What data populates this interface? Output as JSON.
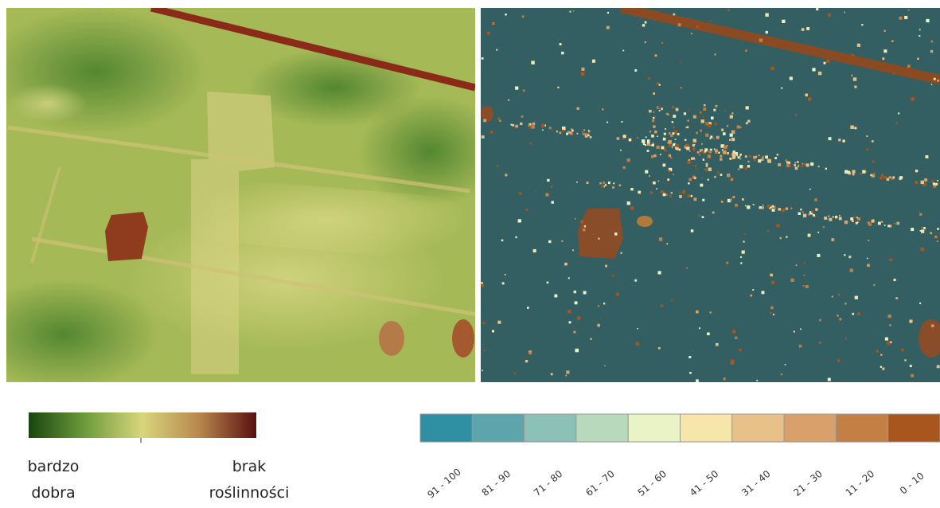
{
  "legend_left": {
    "low_label": [
      "bardzo",
      "dobra"
    ],
    "high_label": [
      "brak",
      "roślinności"
    ]
  },
  "legend_right": {
    "items": [
      {
        "label": "91 - 100",
        "color": "#2f8fa3"
      },
      {
        "label": "81 - 90",
        "color": "#5ea4ab"
      },
      {
        "label": "71 - 80",
        "color": "#8cc1b7"
      },
      {
        "label": "61 - 70",
        "color": "#b9d9bd"
      },
      {
        "label": "51 - 60",
        "color": "#e9f3c6"
      },
      {
        "label": "41 - 50",
        "color": "#f6e6a9"
      },
      {
        "label": "31 - 40",
        "color": "#e8c189"
      },
      {
        "label": "21 - 30",
        "color": "#d9a06b"
      },
      {
        "label": "11 - 20",
        "color": "#c47f45"
      },
      {
        "label": "0 - 10",
        "color": "#a8561e"
      }
    ]
  }
}
